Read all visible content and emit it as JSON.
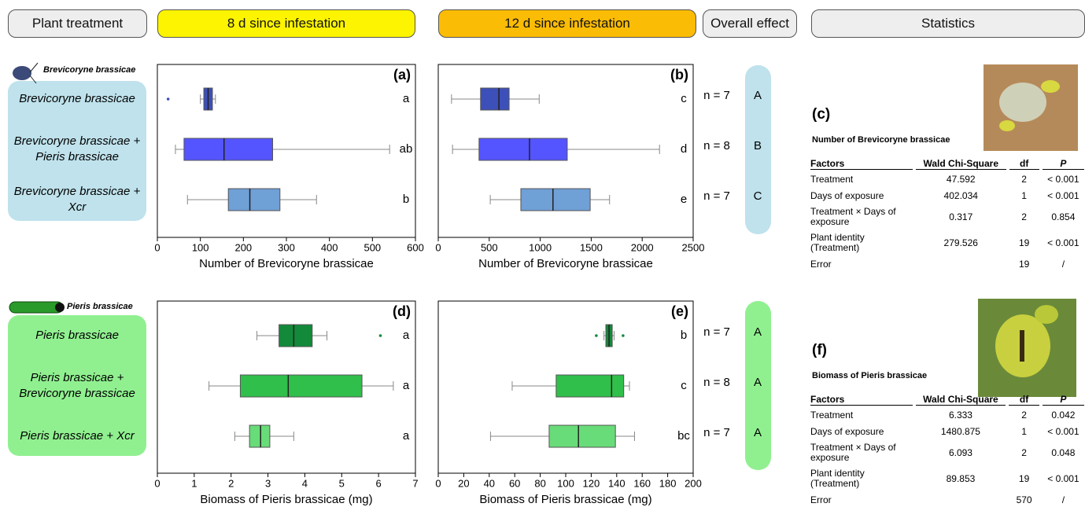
{
  "headers": {
    "treatment": "Plant treatment",
    "day8": "8 d since infestation",
    "day12": "12 d since infestation",
    "overall": "Overall effect",
    "statistics": "Statistics"
  },
  "chart_data": [
    {
      "type": "box",
      "panel": "(a)",
      "insect": "Brevicoryne brassicae",
      "categories": [
        "Brevicoryne brassicae",
        "Brevicoryne brassicae + Pieris brassicae",
        "Brevicoryne brassicae + Xcr"
      ],
      "xlabel": "Number of Brevicoryne brassicae",
      "xlim": [
        0,
        600
      ],
      "xticks": [
        0,
        100,
        200,
        300,
        400,
        500,
        600
      ],
      "colors": [
        "#3d4fb8",
        "#5555ff",
        "#6fa0d6"
      ],
      "boxes": [
        {
          "low": 100,
          "q1": 108,
          "median": 118,
          "q3": 128,
          "high": 135,
          "outliers": [
            25
          ]
        },
        {
          "low": 42,
          "q1": 62,
          "median": 155,
          "q3": 268,
          "high": 540
        },
        {
          "low": 70,
          "q1": 165,
          "median": 215,
          "q3": 285,
          "high": 370
        }
      ],
      "letters": [
        "a",
        "ab",
        "b"
      ]
    },
    {
      "type": "box",
      "panel": "(b)",
      "xlabel": "Number of Brevicoryne brassicae",
      "xlim": [
        0,
        2500
      ],
      "xticks": [
        0,
        500,
        1000,
        1500,
        2000,
        2500
      ],
      "colors": [
        "#3d4fb8",
        "#5555ff",
        "#6fa0d6"
      ],
      "boxes": [
        {
          "low": 130,
          "q1": 415,
          "median": 595,
          "q3": 695,
          "high": 990
        },
        {
          "low": 140,
          "q1": 400,
          "median": 895,
          "q3": 1265,
          "high": 2170
        },
        {
          "low": 510,
          "q1": 810,
          "median": 1125,
          "q3": 1490,
          "high": 1680
        }
      ],
      "letters": [
        "c",
        "d",
        "e"
      ],
      "n_labels": [
        "n = 7",
        "n = 8",
        "n = 7"
      ],
      "overall_letters": [
        "A",
        "B",
        "C"
      ]
    },
    {
      "type": "box",
      "panel": "(d)",
      "insect": "Pieris brassicae",
      "categories": [
        "Pieris brassicae",
        "Pieris brassicae + Brevicoryne brassicae",
        "Pieris brassicae + Xcr"
      ],
      "xlabel": "Biomass of Pieris brassicae (mg)",
      "xlim": [
        0,
        7
      ],
      "xticks": [
        0,
        1,
        2,
        3,
        4,
        5,
        6,
        7
      ],
      "colors": [
        "#128a3a",
        "#2fbf4a",
        "#68dc78"
      ],
      "boxes": [
        {
          "low": 2.7,
          "q1": 3.3,
          "median": 3.7,
          "q3": 4.2,
          "high": 4.6,
          "outliers": [
            6.05
          ]
        },
        {
          "low": 1.4,
          "q1": 2.25,
          "median": 3.55,
          "q3": 5.55,
          "high": 6.4
        },
        {
          "low": 2.1,
          "q1": 2.5,
          "median": 2.8,
          "q3": 3.05,
          "high": 3.7
        }
      ],
      "letters": [
        "a",
        "a",
        "a"
      ]
    },
    {
      "type": "box",
      "panel": "(e)",
      "xlabel": "Biomass of Pieris brassicae (mg)",
      "xlim": [
        0,
        200
      ],
      "xticks": [
        0,
        20,
        40,
        60,
        80,
        100,
        120,
        140,
        160,
        180,
        200
      ],
      "colors": [
        "#128a3a",
        "#2fbf4a",
        "#68dc78"
      ],
      "boxes": [
        {
          "low": 130,
          "q1": 131.5,
          "median": 134,
          "q3": 136.5,
          "high": 138,
          "outliers": [
            124,
            145
          ]
        },
        {
          "low": 58,
          "q1": 92.5,
          "median": 136,
          "q3": 145.5,
          "high": 150
        },
        {
          "low": 41,
          "q1": 87,
          "median": 110,
          "q3": 139,
          "high": 154
        }
      ],
      "letters": [
        "b",
        "c",
        "bc"
      ],
      "n_labels": [
        "n = 7",
        "n = 8",
        "n = 7"
      ],
      "overall_letters": [
        "A",
        "A",
        "A"
      ]
    }
  ],
  "stats": [
    {
      "panel": "(c)",
      "title": "Number of Brevicoryne brassicae",
      "columns": [
        "Factors",
        "Wald Chi-Square",
        "df",
        "P"
      ],
      "rows": [
        {
          "factor": "Treatment",
          "wald": 47.592,
          "df": 2,
          "p": "< 0.001"
        },
        {
          "factor": "Days of exposure",
          "wald": 402.034,
          "df": 1,
          "p": "< 0.001"
        },
        {
          "factor": "Treatment × Days of exposure",
          "wald": 0.317,
          "df": 2,
          "p": 0.854
        },
        {
          "factor": "Plant identity (Treatment)",
          "wald": 279.526,
          "df": 19,
          "p": "< 0.001"
        },
        {
          "factor": "Error",
          "df": 19,
          "p": "/"
        }
      ]
    },
    {
      "panel": "(f)",
      "title": "Biomass of Pieris brassicae",
      "columns": [
        "Factors",
        "Wald Chi-Square",
        "df",
        "P"
      ],
      "rows": [
        {
          "factor": "Treatment",
          "wald": 6.333,
          "df": 2,
          "p": 0.042
        },
        {
          "factor": "Days of exposure",
          "wald": 1480.875,
          "df": 1,
          "p": "< 0.001"
        },
        {
          "factor": "Treatment × Days of exposure",
          "wald": 6.093,
          "df": 2,
          "p": 0.048
        },
        {
          "factor": "Plant identity (Treatment)",
          "wald": 89.853,
          "df": 19,
          "p": "< 0.001"
        },
        {
          "factor": "Error",
          "df": 570,
          "p": "/"
        }
      ]
    }
  ]
}
